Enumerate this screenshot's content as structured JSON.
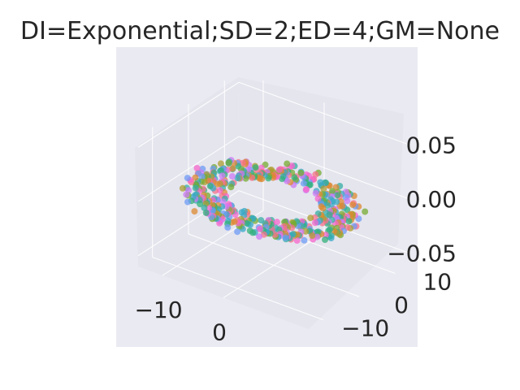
{
  "colors": {
    "axes_background": "#EAEAF2",
    "pane": "#E5E5EE",
    "grid": "#FFFFFF",
    "text": "#262626"
  },
  "chart_data": {
    "type": "scatter",
    "projection": "3d",
    "title": "DI=Exponential;SD=2;ED=4;GM=None",
    "xlabel": "",
    "ylabel": "",
    "zlabel": "",
    "grid": true,
    "legend": "none",
    "xlim": [
      -14,
      14
    ],
    "ylim": [
      -14,
      14
    ],
    "zlim": [
      -0.06,
      0.06
    ],
    "x_ticks": [
      {
        "value": -10,
        "label": "−10"
      },
      {
        "value": 0,
        "label": "0"
      }
    ],
    "y_ticks": [
      {
        "value": -10,
        "label": "−10"
      },
      {
        "value": 0,
        "label": "0"
      },
      {
        "value": 10,
        "label": "10"
      }
    ],
    "z_ticks": [
      {
        "value": -0.05,
        "label": "−0.05"
      },
      {
        "value": 0.0,
        "label": "0.00"
      },
      {
        "value": 0.05,
        "label": "0.05"
      }
    ],
    "palette": [
      "#F77189",
      "#DC8932",
      "#AE9D31",
      "#77AB31",
      "#33B07A",
      "#36ADA4",
      "#38A9C5",
      "#6E9BF4",
      "#CC7AF4",
      "#F565CC"
    ],
    "structure": "ring",
    "ring_radius_x": 10,
    "ring_radius_y": 9,
    "ring_width": 3,
    "z_value": 0.0,
    "n_points": 520
  }
}
